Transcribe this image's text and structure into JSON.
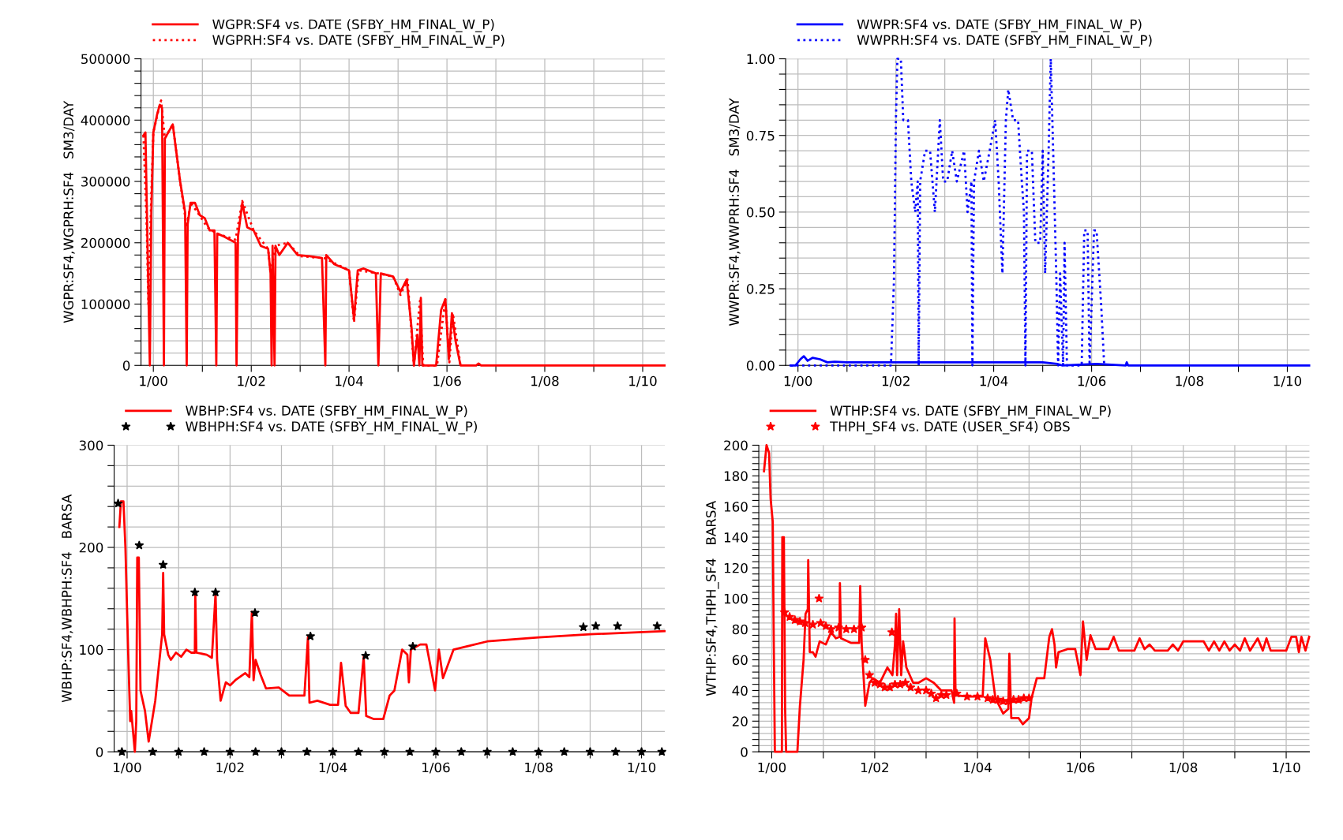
{
  "chart_data": [
    {
      "type": "line",
      "ylabel": "WGPR:SF4,WGPRH:SF4   SM3/DAY",
      "legend": "top left",
      "grid": true,
      "xlim": [
        "1999-10-01",
        "2010-06-15"
      ],
      "ylim": [
        0,
        500000
      ],
      "xticks": [
        {
          "value": "2000-01-01",
          "label": "1/00"
        },
        {
          "value": "2001-01-01",
          "label": null
        },
        {
          "value": "2002-01-01",
          "label": "1/02"
        },
        {
          "value": "2003-01-01",
          "label": null
        },
        {
          "value": "2004-01-01",
          "label": "1/04"
        },
        {
          "value": "2005-01-01",
          "label": null
        },
        {
          "value": "2006-01-01",
          "label": "1/06"
        },
        {
          "value": "2007-01-01",
          "label": null
        },
        {
          "value": "2008-01-01",
          "label": "1/08"
        },
        {
          "value": "2009-01-01",
          "label": null
        },
        {
          "value": "2010-01-01",
          "label": "1/10"
        }
      ],
      "yticks": [
        0,
        {
          "value": 20000,
          "label": null
        },
        {
          "value": 40000,
          "label": null
        },
        {
          "value": 60000,
          "label": null
        },
        {
          "value": 80000,
          "label": null
        },
        100000,
        {
          "value": 120000,
          "label": null
        },
        {
          "value": 140000,
          "label": null
        },
        {
          "value": 160000,
          "label": null
        },
        {
          "value": 180000,
          "label": null
        },
        200000,
        {
          "value": 220000,
          "label": null
        },
        {
          "value": 240000,
          "label": null
        },
        {
          "value": 260000,
          "label": null
        },
        {
          "value": 280000,
          "label": null
        },
        300000,
        {
          "value": 320000,
          "label": null
        },
        {
          "value": 340000,
          "label": null
        },
        {
          "value": 360000,
          "label": null
        },
        {
          "value": 380000,
          "label": null
        },
        400000,
        {
          "value": 420000,
          "label": null
        },
        {
          "value": 440000,
          "label": null
        },
        {
          "value": 460000,
          "label": null
        },
        {
          "value": 480000,
          "label": null
        },
        500000
      ],
      "series": [
        {
          "name": "WGPR:SF4 vs. DATE (SFBY_HM_FINAL_W_P)",
          "color": "#ff0000",
          "line_style": "solid",
          "x": [
            "1999-10-19",
            "1999-11-03",
            "1999-11-14",
            "1999-11-25",
            "1999-12-06",
            "1999-12-17",
            "2000-01-01",
            "2000-01-30",
            "2000-02-18",
            "2000-03-06",
            "2000-03-20",
            "2000-03-27",
            "2000-05-25",
            "2000-07-19",
            "2000-08-25",
            "2000-09-06",
            "2000-09-13",
            "2000-10-05",
            "2000-11-07",
            "2000-12-13",
            "2001-01-19",
            "2001-02-25",
            "2001-04-01",
            "2001-04-15",
            "2001-04-22",
            "2001-06-13",
            "2001-09-06",
            "2001-09-13",
            "2001-09-24",
            "2001-10-26",
            "2001-12-02",
            "2002-01-19",
            "2002-03-13",
            "2002-05-07",
            "2002-05-25",
            "2002-06-02",
            "2002-06-09",
            "2002-06-24",
            "2002-07-01",
            "2002-07-29",
            "2002-10-01",
            "2002-12-13",
            "2003-03-13",
            "2003-06-13",
            "2003-07-08",
            "2003-07-15",
            "2003-09-13",
            "2004-01-01",
            "2004-02-07",
            "2004-03-06",
            "2004-04-19",
            "2004-07-19",
            "2004-08-07",
            "2004-08-25",
            "2004-11-25",
            "2005-01-19",
            "2005-03-06",
            "2005-04-12",
            "2005-04-29",
            "2005-05-25",
            "2005-06-09",
            "2005-06-20",
            "2005-07-01",
            "2005-10-12",
            "2005-11-18",
            "2005-12-20",
            "2006-01-15",
            "2006-02-07",
            "2006-03-06",
            "2006-04-12",
            "2006-08-07",
            "2006-08-25",
            "2006-09-13",
            "2010-06-13"
          ],
          "values": [
            375000,
            380000,
            250000,
            120000,
            0,
            250000,
            380000,
            410000,
            425000,
            420000,
            0,
            370000,
            393000,
            300000,
            250000,
            0,
            230000,
            265000,
            265000,
            245000,
            240000,
            220000,
            220000,
            0,
            215000,
            210000,
            200000,
            0,
            210000,
            265000,
            225000,
            220000,
            195000,
            190000,
            150000,
            0,
            195000,
            0,
            195000,
            180000,
            200000,
            180000,
            178000,
            175000,
            0,
            180000,
            165000,
            155000,
            75000,
            155000,
            158000,
            150000,
            0,
            150000,
            145000,
            120000,
            140000,
            60000,
            0,
            50000,
            0,
            110000,
            0,
            0,
            90000,
            108000,
            10000,
            85000,
            40000,
            0,
            0,
            3000,
            0,
            0
          ]
        },
        {
          "name": "WGPRH:SF4 vs. DATE (SFBY_HM_FINAL_W_P)",
          "color": "#ff0000",
          "line_style": "dotted",
          "x": [
            "1999-10-19",
            "1999-11-11",
            "1999-11-25",
            "1999-12-17",
            "2000-01-01",
            "2000-02-07",
            "2000-02-28",
            "2000-03-27",
            "2000-05-25",
            "2000-07-19",
            "2000-09-06",
            "2000-10-05",
            "2000-11-25",
            "2001-02-07",
            "2001-04-19",
            "2001-09-06",
            "2001-10-26",
            "2002-01-19",
            "2002-05-07",
            "2002-05-25",
            "2002-07-01",
            "2002-10-01",
            "2003-01-01",
            "2003-07-01",
            "2004-01-01",
            "2004-02-07",
            "2004-03-13",
            "2004-08-07",
            "2004-11-25",
            "2005-01-19",
            "2005-03-13",
            "2005-04-29",
            "2005-06-13",
            "2005-07-08",
            "2005-10-19",
            "2005-12-20",
            "2006-01-19",
            "2006-02-14",
            "2006-04-12"
          ],
          "values": [
            375000,
            240000,
            100000,
            280000,
            380000,
            415000,
            432000,
            370000,
            393000,
            300000,
            225000,
            265000,
            250000,
            225000,
            215000,
            205000,
            268000,
            220000,
            190000,
            150000,
            195000,
            200000,
            178000,
            175000,
            155000,
            70000,
            155000,
            150000,
            145000,
            115000,
            140000,
            0,
            105000,
            0,
            0,
            108000,
            5000,
            85000,
            0
          ]
        }
      ]
    },
    {
      "type": "line",
      "ylabel": "WWPR:SF4,WWPRH:SF4   SM3/DAY",
      "legend": "top left",
      "grid": true,
      "xlim": [
        "1999-10-01",
        "2010-06-15"
      ],
      "ylim": [
        0,
        1.0
      ],
      "xticks": [
        {
          "value": "2000-01-01",
          "label": "1/00"
        },
        {
          "value": "2001-01-01",
          "label": null
        },
        {
          "value": "2002-01-01",
          "label": "1/02"
        },
        {
          "value": "2003-01-01",
          "label": null
        },
        {
          "value": "2004-01-01",
          "label": "1/04"
        },
        {
          "value": "2005-01-01",
          "label": null
        },
        {
          "value": "2006-01-01",
          "label": "1/06"
        },
        {
          "value": "2007-01-01",
          "label": null
        },
        {
          "value": "2008-01-01",
          "label": "1/08"
        },
        {
          "value": "2009-01-01",
          "label": null
        },
        {
          "value": "2010-01-01",
          "label": "1/10"
        }
      ],
      "yticks": [
        {
          "value": 0,
          "label": "0.00"
        },
        {
          "value": 0.05,
          "label": null
        },
        {
          "value": 0.1,
          "label": null
        },
        {
          "value": 0.15,
          "label": null
        },
        {
          "value": 0.2,
          "label": null
        },
        {
          "value": 0.25,
          "label": "0.25"
        },
        {
          "value": 0.3,
          "label": null
        },
        {
          "value": 0.35,
          "label": null
        },
        {
          "value": 0.4,
          "label": null
        },
        {
          "value": 0.45,
          "label": null
        },
        {
          "value": 0.5,
          "label": "0.50"
        },
        {
          "value": 0.55,
          "label": null
        },
        {
          "value": 0.6,
          "label": null
        },
        {
          "value": 0.65,
          "label": null
        },
        {
          "value": 0.7,
          "label": null
        },
        {
          "value": 0.75,
          "label": "0.75"
        },
        {
          "value": 0.8,
          "label": null
        },
        {
          "value": 0.85,
          "label": null
        },
        {
          "value": 0.9,
          "label": null
        },
        {
          "value": 0.95,
          "label": null
        },
        {
          "value": 1.0,
          "label": "1.00"
        }
      ],
      "series": [
        {
          "name": "WWPR:SF4 vs. DATE (SFBY_HM_FINAL_W_P)",
          "color": "#0000ff",
          "line_style": "solid",
          "x": [
            "1999-11-07",
            "1999-12-13",
            "2000-01-19",
            "2000-02-14",
            "2000-03-13",
            "2000-04-19",
            "2000-06-13",
            "2000-08-07",
            "2000-10-01",
            "2001-01-01",
            "2002-01-01",
            "2002-07-01",
            "2003-01-01",
            "2004-01-01",
            "2005-01-01",
            "2005-04-19",
            "2005-05-25",
            "2006-02-07",
            "2006-09-13",
            "2006-09-20",
            "2006-10-01",
            "2010-06-13"
          ],
          "values": [
            0,
            0,
            0.02,
            0.03,
            0.015,
            0.025,
            0.02,
            0.01,
            0.012,
            0.01,
            0.01,
            0.01,
            0.01,
            0.01,
            0.01,
            0.005,
            0,
            0.005,
            0,
            0.01,
            0,
            0
          ]
        },
        {
          "name": "WWPRH:SF4 vs. DATE (SFBY_HM_FINAL_W_P)",
          "color": "#0000ff",
          "line_style": "dotted",
          "x": [
            "1999-11-07",
            "2001-10-19",
            "2001-11-25",
            "2001-12-17",
            "2001-12-24",
            "2002-01-01",
            "2002-01-12",
            "2002-02-07",
            "2002-02-25",
            "2002-04-01",
            "2002-04-26",
            "2002-05-25",
            "2002-06-13",
            "2002-06-20",
            "2002-07-01",
            "2002-08-07",
            "2002-09-13",
            "2002-10-19",
            "2002-11-25",
            "2002-12-20",
            "2003-01-19",
            "2003-02-25",
            "2003-04-01",
            "2003-05-25",
            "2003-06-20",
            "2003-07-19",
            "2003-07-26",
            "2003-08-07",
            "2003-09-13",
            "2003-10-19",
            "2003-12-02",
            "2004-01-12",
            "2004-02-07",
            "2004-03-06",
            "2004-04-01",
            "2004-04-19",
            "2004-05-25",
            "2004-07-01",
            "2004-07-29",
            "2004-08-14",
            "2004-08-25",
            "2004-09-06",
            "2004-10-12",
            "2004-11-07",
            "2004-12-13",
            "2005-01-01",
            "2005-01-19",
            "2005-02-14",
            "2005-03-02",
            "2005-03-20",
            "2005-04-12",
            "2005-04-26",
            "2005-05-11",
            "2005-06-02",
            "2005-06-13",
            "2005-07-01",
            "2005-10-19",
            "2005-11-07",
            "2005-12-02",
            "2005-12-17",
            "2006-01-19",
            "2006-02-07",
            "2006-03-13",
            "2006-04-05"
          ],
          "values": [
            0,
            0,
            0,
            0.27,
            0.5,
            0.8,
            1.0,
            1.0,
            0.8,
            0.8,
            0.6,
            0.5,
            0.6,
            0,
            0.6,
            0.7,
            0.7,
            0.5,
            0.8,
            0.6,
            0.6,
            0.7,
            0.6,
            0.7,
            0.5,
            0.6,
            0,
            0.6,
            0.7,
            0.6,
            0.7,
            0.8,
            0.6,
            0.3,
            0.8,
            0.9,
            0.8,
            0.8,
            0.6,
            0.5,
            0,
            0.7,
            0.7,
            0.4,
            0.4,
            0.7,
            0.3,
            0.7,
            1.0,
            0.7,
            0.3,
            0,
            0.3,
            0,
            0.4,
            0,
            0,
            0.44,
            0.44,
            0,
            0.44,
            0.44,
            0.2,
            0
          ]
        }
      ]
    },
    {
      "type": "line",
      "ylabel": "WBHP:SF4,WBHPH:SF4   BARSA",
      "legend": "top left",
      "grid": true,
      "xlim": [
        "1999-10-01",
        "2010-06-15"
      ],
      "ylim": [
        0,
        300
      ],
      "xticks": [
        {
          "value": "2000-01-01",
          "label": "1/00"
        },
        {
          "value": "2001-01-01",
          "label": null
        },
        {
          "value": "2002-01-01",
          "label": "1/02"
        },
        {
          "value": "2003-01-01",
          "label": null
        },
        {
          "value": "2004-01-01",
          "label": "1/04"
        },
        {
          "value": "2005-01-01",
          "label": null
        },
        {
          "value": "2006-01-01",
          "label": "1/06"
        },
        {
          "value": "2007-01-01",
          "label": null
        },
        {
          "value": "2008-01-01",
          "label": "1/08"
        },
        {
          "value": "2009-01-01",
          "label": null
        },
        {
          "value": "2010-01-01",
          "label": "1/10"
        }
      ],
      "yticks": [
        0,
        {
          "value": 20,
          "label": null
        },
        {
          "value": 40,
          "label": null
        },
        {
          "value": 60,
          "label": null
        },
        {
          "value": 80,
          "label": null
        },
        100,
        {
          "value": 120,
          "label": null
        },
        {
          "value": 140,
          "label": null
        },
        {
          "value": 160,
          "label": null
        },
        {
          "value": 180,
          "label": null
        },
        200,
        {
          "value": 220,
          "label": null
        },
        {
          "value": 240,
          "label": null
        },
        {
          "value": 260,
          "label": null
        },
        {
          "value": 280,
          "label": null
        },
        300
      ],
      "series": [
        {
          "name": "WBHP:SF4 vs. DATE (SFBY_HM_FINAL_W_P)",
          "color": "#ff0000",
          "line_style": "solid",
          "x": [
            "1999-11-07",
            "1999-11-18",
            "1999-12-06",
            "1999-12-20",
            "2000-01-08",
            "2000-01-23",
            "2000-01-30",
            "2000-02-25",
            "2000-03-06",
            "2000-03-13",
            "2000-03-24",
            "2000-04-05",
            "2000-05-07",
            "2000-06-02",
            "2000-07-19",
            "2000-08-14",
            "2000-09-06",
            "2000-09-13",
            "2000-09-20",
            "2000-10-19",
            "2000-11-07",
            "2000-12-13",
            "2001-01-19",
            "2001-02-25",
            "2001-04-01",
            "2001-04-26",
            "2001-04-29",
            "2001-05-07",
            "2001-07-19",
            "2001-08-25",
            "2001-09-20",
            "2001-10-01",
            "2001-10-26",
            "2001-12-02",
            "2002-01-01",
            "2002-02-07",
            "2002-04-19",
            "2002-05-18",
            "2002-06-05",
            "2002-06-17",
            "2002-07-01",
            "2002-08-07",
            "2002-09-13",
            "2002-12-13",
            "2003-02-25",
            "2003-06-13",
            "2003-07-08",
            "2003-07-19",
            "2003-09-13",
            "2003-12-13",
            "2004-02-07",
            "2004-02-28",
            "2004-04-01",
            "2004-05-07",
            "2004-07-01",
            "2004-08-07",
            "2004-08-25",
            "2004-10-19",
            "2004-12-24",
            "2005-02-07",
            "2005-03-13",
            "2005-05-07",
            "2005-06-13",
            "2005-06-24",
            "2005-07-08",
            "2005-09-13",
            "2005-10-26",
            "2005-12-27",
            "2006-01-23",
            "2006-02-21",
            "2006-05-07",
            "2006-08-07",
            "2007-01-01",
            "2008-01-01",
            "2009-01-01",
            "2010-06-13"
          ],
          "values": [
            220,
            245,
            245,
            200,
            100,
            30,
            40,
            0,
            30,
            190,
            190,
            60,
            40,
            10,
            50,
            85,
            115,
            175,
            115,
            95,
            90,
            97,
            93,
            100,
            97,
            97,
            155,
            97,
            95,
            92,
            155,
            90,
            50,
            68,
            65,
            70,
            77,
            73,
            137,
            70,
            90,
            75,
            62,
            63,
            55,
            55,
            112,
            48,
            50,
            46,
            46,
            87,
            45,
            38,
            38,
            93,
            35,
            32,
            32,
            55,
            60,
            100,
            95,
            68,
            100,
            105,
            105,
            60,
            100,
            72,
            100,
            103,
            108,
            112,
            115,
            118
          ]
        },
        {
          "name": "WBHPH:SF4 vs. DATE (SFBY_HM_FINAL_W_P)",
          "type": "scatter",
          "color": "#000000",
          "marker": "star",
          "x": [
            "1999-10-29",
            "2000-03-27",
            "2000-09-13",
            "2001-04-26",
            "2001-09-20",
            "2002-06-27",
            "2003-07-26",
            "2004-08-21",
            "2005-07-22",
            "2008-11-14",
            "2009-02-10",
            "2009-07-15",
            "2010-04-22",
            "1999-11-25",
            "2000-07-01",
            "2001-01-01",
            "2001-07-01",
            "2002-01-01",
            "2002-07-01",
            "2003-01-01",
            "2003-07-01",
            "2004-01-01",
            "2004-07-01",
            "2005-01-01",
            "2005-07-01",
            "2006-01-01",
            "2006-07-01",
            "2007-01-01",
            "2007-07-01",
            "2008-01-01",
            "2008-07-01",
            "2009-01-01",
            "2009-07-01",
            "2010-01-01",
            "2010-05-25"
          ],
          "values": [
            243,
            202,
            183,
            156,
            156,
            136,
            113,
            94,
            103,
            122,
            123,
            123,
            123,
            0,
            0,
            0,
            0,
            0,
            0,
            0,
            0,
            0,
            0,
            0,
            0,
            0,
            0,
            0,
            0,
            0,
            0,
            0,
            0,
            0,
            0
          ]
        }
      ]
    },
    {
      "type": "line",
      "ylabel": "WTHP:SF4,THPH_SF4   BARSA",
      "legend": "top left",
      "grid": true,
      "xlim": [
        "1999-10-01",
        "2010-06-15"
      ],
      "ylim": [
        0,
        200
      ],
      "xticks": [
        {
          "value": "2000-01-01",
          "label": "1/00"
        },
        {
          "value": "2001-01-01",
          "label": null
        },
        {
          "value": "2002-01-01",
          "label": "1/02"
        },
        {
          "value": "2003-01-01",
          "label": null
        },
        {
          "value": "2004-01-01",
          "label": "1/04"
        },
        {
          "value": "2005-01-01",
          "label": null
        },
        {
          "value": "2006-01-01",
          "label": "1/06"
        },
        {
          "value": "2007-01-01",
          "label": null
        },
        {
          "value": "2008-01-01",
          "label": "1/08"
        },
        {
          "value": "2009-01-01",
          "label": null
        },
        {
          "value": "2010-01-01",
          "label": "1/10"
        }
      ],
      "yticks": [
        0,
        {
          "value": 4,
          "label": null
        },
        {
          "value": 8,
          "label": null
        },
        {
          "value": 12,
          "label": null
        },
        {
          "value": 16,
          "label": null
        },
        20,
        {
          "value": 24,
          "label": null
        },
        {
          "value": 28,
          "label": null
        },
        {
          "value": 32,
          "label": null
        },
        {
          "value": 36,
          "label": null
        },
        40,
        {
          "value": 44,
          "label": null
        },
        {
          "value": 48,
          "label": null
        },
        {
          "value": 52,
          "label": null
        },
        {
          "value": 56,
          "label": null
        },
        60,
        {
          "value": 64,
          "label": null
        },
        {
          "value": 68,
          "label": null
        },
        {
          "value": 72,
          "label": null
        },
        {
          "value": 76,
          "label": null
        },
        80,
        {
          "value": 84,
          "label": null
        },
        {
          "value": 88,
          "label": null
        },
        {
          "value": 92,
          "label": null
        },
        {
          "value": 96,
          "label": null
        },
        100,
        {
          "value": 104,
          "label": null
        },
        {
          "value": 108,
          "label": null
        },
        {
          "value": 112,
          "label": null
        },
        {
          "value": 116,
          "label": null
        },
        120,
        {
          "value": 124,
          "label": null
        },
        {
          "value": 128,
          "label": null
        },
        {
          "value": 132,
          "label": null
        },
        {
          "value": 136,
          "label": null
        },
        140,
        {
          "value": 144,
          "label": null
        },
        {
          "value": 148,
          "label": null
        },
        {
          "value": 152,
          "label": null
        },
        {
          "value": 156,
          "label": null
        },
        160,
        {
          "value": 164,
          "label": null
        },
        {
          "value": 168,
          "label": null
        },
        {
          "value": 172,
          "label": null
        },
        {
          "value": 176,
          "label": null
        },
        180,
        {
          "value": 184,
          "label": null
        },
        {
          "value": 188,
          "label": null
        },
        {
          "value": 192,
          "label": null
        },
        {
          "value": 196,
          "label": null
        },
        200
      ],
      "series": [
        {
          "name": "WTHP:SF4 vs. DATE (SFBY_HM_FINAL_W_P)",
          "color": "#ff0000",
          "line_style": "solid",
          "x": [
            "1999-11-07",
            "1999-11-25",
            "1999-12-13",
            "1999-12-24",
            "2000-01-08",
            "2000-01-15",
            "2000-01-23",
            "2000-03-13",
            "2000-03-16",
            "2000-03-27",
            "2000-04-05",
            "2000-04-12",
            "2000-07-01",
            "2000-07-19",
            "2000-08-14",
            "2000-08-28",
            "2000-09-13",
            "2000-09-16",
            "2000-09-27",
            "2000-10-19",
            "2000-11-07",
            "2000-12-06",
            "2001-01-19",
            "2001-02-25",
            "2001-04-01",
            "2001-04-26",
            "2001-04-29",
            "2001-05-07",
            "2001-07-19",
            "2001-09-13",
            "2001-09-20",
            "2001-10-01",
            "2001-10-26",
            "2001-11-25",
            "2001-12-20",
            "2002-02-07",
            "2002-04-01",
            "2002-05-07",
            "2002-05-25",
            "2002-06-02",
            "2002-06-09",
            "2002-06-24",
            "2002-07-08",
            "2002-07-22",
            "2002-08-14",
            "2002-10-01",
            "2002-11-07",
            "2003-01-01",
            "2003-02-25",
            "2003-04-19",
            "2003-07-01",
            "2003-07-19",
            "2003-07-22",
            "2003-07-29",
            "2003-10-19",
            "2004-02-07",
            "2004-02-25",
            "2004-04-01",
            "2004-05-07",
            "2004-07-01",
            "2004-08-07",
            "2004-08-14",
            "2004-08-28",
            "2004-10-19",
            "2004-11-18",
            "2005-01-01",
            "2005-01-19",
            "2005-02-25",
            "2005-04-19",
            "2005-05-25",
            "2005-06-13",
            "2005-07-01",
            "2005-07-12",
            "2005-07-29",
            "2005-10-01",
            "2005-11-25",
            "2006-01-01",
            "2006-01-19",
            "2006-02-14",
            "2006-03-13",
            "2006-04-19",
            "2006-07-19",
            "2006-08-25",
            "2006-10-01",
            "2007-01-19",
            "2007-02-25",
            "2007-04-01",
            "2007-05-07",
            "2007-06-13",
            "2007-09-13",
            "2007-10-19",
            "2007-11-25",
            "2008-01-01",
            "2008-05-25",
            "2008-07-01",
            "2008-08-07",
            "2008-09-13",
            "2008-10-19",
            "2008-11-25",
            "2009-01-01",
            "2009-02-07",
            "2009-03-13",
            "2009-04-19",
            "2009-06-13",
            "2009-07-19",
            "2009-08-14",
            "2009-09-13",
            "2010-01-01",
            "2010-02-07",
            "2010-03-13",
            "2010-04-01",
            "2010-04-19",
            "2010-05-18",
            "2010-06-13"
          ],
          "values": [
            183,
            200,
            195,
            165,
            150,
            75,
            0,
            0,
            140,
            140,
            28,
            0,
            0,
            30,
            60,
            90,
            93,
            125,
            65,
            65,
            62,
            72,
            70,
            78,
            74,
            75,
            110,
            74,
            71,
            71,
            108,
            70,
            30,
            45,
            48,
            45,
            55,
            50,
            70,
            90,
            50,
            93,
            50,
            72,
            55,
            45,
            45,
            48,
            45,
            40,
            40,
            32,
            87,
            37,
            36,
            36,
            74,
            60,
            35,
            25,
            28,
            64,
            22,
            22,
            18,
            22,
            35,
            48,
            48,
            75,
            80,
            70,
            55,
            65,
            67,
            67,
            50,
            85,
            60,
            76,
            67,
            67,
            75,
            66,
            66,
            74,
            67,
            70,
            66,
            66,
            70,
            66,
            72,
            72,
            66,
            72,
            66,
            72,
            66,
            70,
            66,
            74,
            66,
            74,
            66,
            74,
            66,
            66,
            75,
            75,
            65,
            75,
            66,
            75
          ]
        },
        {
          "name": "THPH_SF4 vs. DATE (USER_SF4) OBS",
          "type": "scatter",
          "color": "#ff0000",
          "marker": "star",
          "x": [
            "2000-04-01",
            "2000-05-07",
            "2000-06-13",
            "2000-07-19",
            "2000-08-25",
            "2000-10-19",
            "2000-12-02",
            "2000-12-13",
            "2001-01-19",
            "2001-02-25",
            "2001-04-19",
            "2001-06-13",
            "2001-08-07",
            "2001-10-01",
            "2001-10-26",
            "2001-11-25",
            "2002-01-01",
            "2002-02-07",
            "2002-03-13",
            "2002-04-19",
            "2002-05-03",
            "2002-05-25",
            "2002-07-01",
            "2002-08-07",
            "2002-09-13",
            "2002-11-07",
            "2003-01-01",
            "2003-02-07",
            "2003-03-13",
            "2003-04-19",
            "2003-05-25",
            "2003-08-07",
            "2003-10-19",
            "2004-01-01",
            "2004-03-13",
            "2004-04-19",
            "2004-05-25",
            "2004-07-01",
            "2004-08-07",
            "2004-09-13",
            "2004-10-19",
            "2004-11-25",
            "2005-01-01"
          ],
          "values": [
            91,
            88,
            86,
            85,
            84,
            83,
            100,
            84,
            82,
            80,
            81,
            80,
            80,
            81,
            60,
            50,
            45,
            44,
            42,
            42,
            78,
            44,
            44,
            45,
            42,
            40,
            40,
            38,
            35,
            37,
            37,
            38,
            36,
            36,
            35,
            34,
            34,
            33,
            33,
            34,
            34,
            35,
            35
          ]
        }
      ]
    }
  ]
}
